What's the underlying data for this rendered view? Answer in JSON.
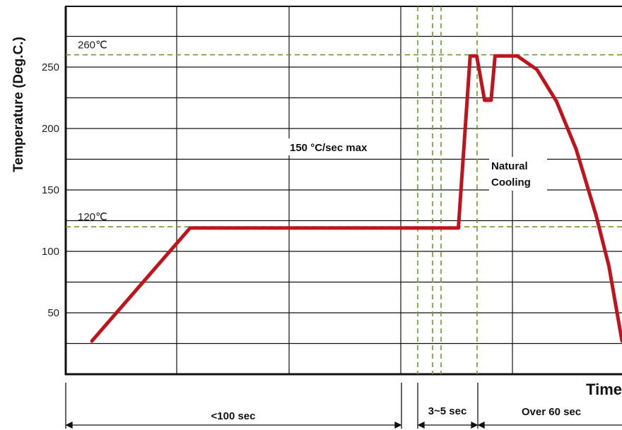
{
  "chart_data": {
    "type": "line",
    "title": "",
    "ylabel": "Temperature (Deg.C.)",
    "xlabel": "Time",
    "ylim": [
      0,
      290
    ],
    "yticks": [
      "50",
      "100",
      "150",
      "200",
      "250"
    ],
    "grid": true,
    "series": [
      {
        "name": "",
        "color": "#c0141c",
        "points": [
          {
            "t": 0,
            "temp": 27
          },
          {
            "t": 15,
            "temp": 119
          },
          {
            "t": 56,
            "temp": 119
          },
          {
            "t": 57.8,
            "temp": 259
          },
          {
            "t": 58.8,
            "temp": 259
          },
          {
            "t": 60,
            "temp": 223
          },
          {
            "t": 61,
            "temp": 223
          },
          {
            "t": 61.6,
            "temp": 259
          },
          {
            "t": 65,
            "temp": 259
          },
          {
            "t": 68,
            "temp": 248
          },
          {
            "t": 71,
            "temp": 222
          },
          {
            "t": 74,
            "temp": 183
          },
          {
            "t": 77,
            "temp": 130
          },
          {
            "t": 79,
            "temp": 88
          },
          {
            "t": 81,
            "temp": 27
          }
        ]
      }
    ],
    "reference_lines": [
      {
        "value": 260,
        "label": "260℃"
      },
      {
        "value": 120,
        "label": "120℃"
      }
    ],
    "annotations": [
      {
        "text": "150 °C/sec max"
      },
      {
        "text": "Natural"
      },
      {
        "text": "Cooling"
      }
    ],
    "time_intervals": [
      {
        "label": "<100 sec"
      },
      {
        "label": "3~5 sec"
      },
      {
        "label": "Over 60 sec"
      }
    ]
  }
}
